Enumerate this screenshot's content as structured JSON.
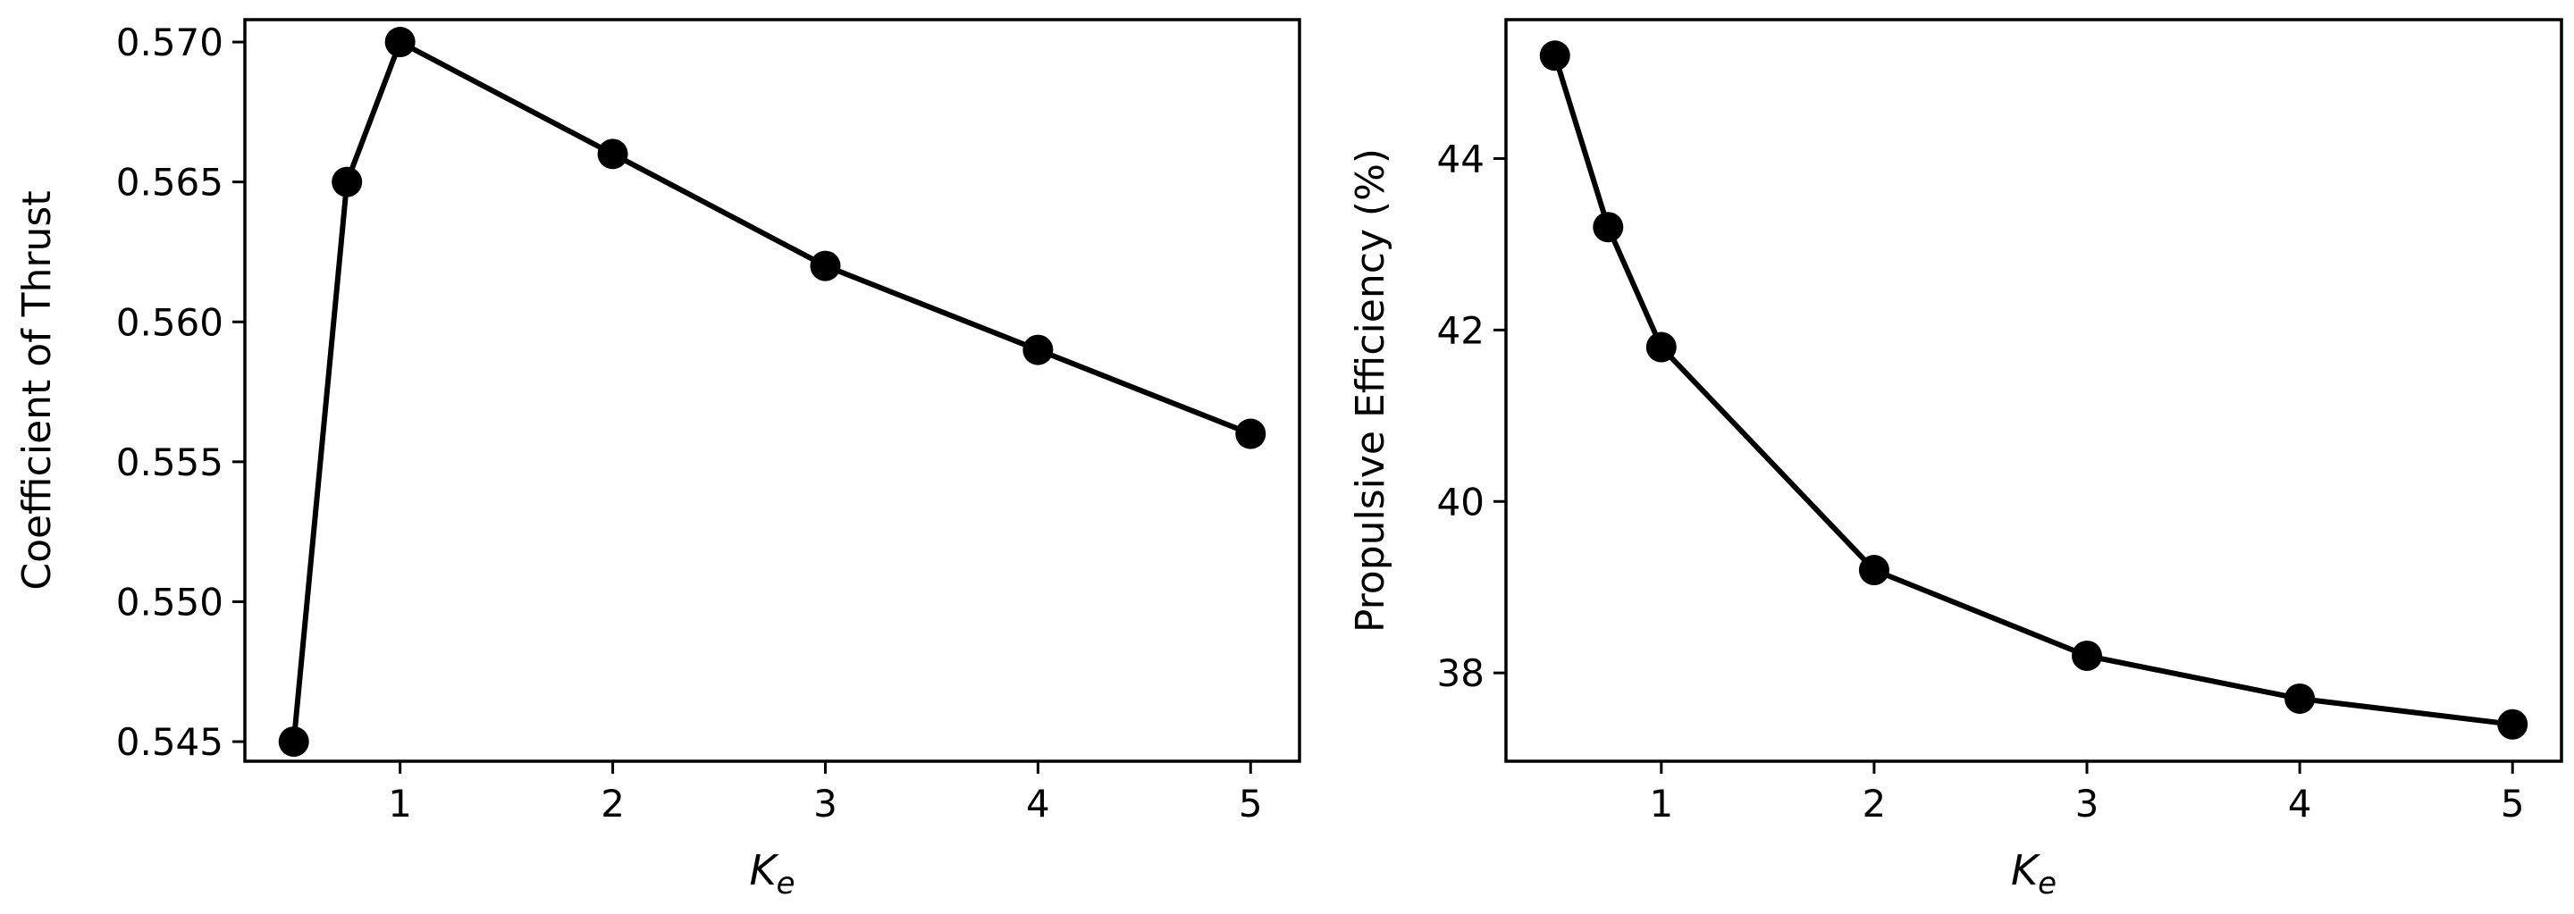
{
  "chart_data": [
    {
      "type": "line",
      "xlabel_main": "K",
      "xlabel_sub": "e",
      "ylabel": "Coefficient of Thrust",
      "x": [
        0.5,
        0.75,
        1,
        2,
        3,
        4,
        5
      ],
      "series": [
        {
          "values": [
            0.545,
            0.565,
            0.57,
            0.566,
            0.562,
            0.559,
            0.556
          ]
        }
      ],
      "xlim": [
        0.27,
        5.23
      ],
      "ylim": [
        0.5443,
        0.5708
      ],
      "xticks": [
        1,
        2,
        3,
        4,
        5
      ],
      "xtick_labels": [
        "1",
        "2",
        "3",
        "4",
        "5"
      ],
      "yticks": [
        0.545,
        0.55,
        0.555,
        0.56,
        0.565,
        0.57
      ],
      "ytick_labels": [
        "0.545",
        "0.550",
        "0.555",
        "0.560",
        "0.565",
        "0.570"
      ],
      "line_color": "#000000",
      "marker": "circle",
      "grid": false
    },
    {
      "type": "line",
      "xlabel_main": "K",
      "xlabel_sub": "e",
      "ylabel": "Propulsive Efficiency (%)",
      "x": [
        0.5,
        0.75,
        1,
        2,
        3,
        4,
        5
      ],
      "series": [
        {
          "values": [
            45.2,
            43.2,
            41.8,
            39.2,
            38.2,
            37.7,
            37.4
          ]
        }
      ],
      "xlim": [
        0.27,
        5.23
      ],
      "ylim": [
        36.97,
        45.62
      ],
      "xticks": [
        1,
        2,
        3,
        4,
        5
      ],
      "xtick_labels": [
        "1",
        "2",
        "3",
        "4",
        "5"
      ],
      "yticks": [
        38,
        40,
        42,
        44
      ],
      "ytick_labels": [
        "38",
        "40",
        "42",
        "44"
      ],
      "line_color": "#000000",
      "marker": "circle",
      "grid": false
    }
  ]
}
